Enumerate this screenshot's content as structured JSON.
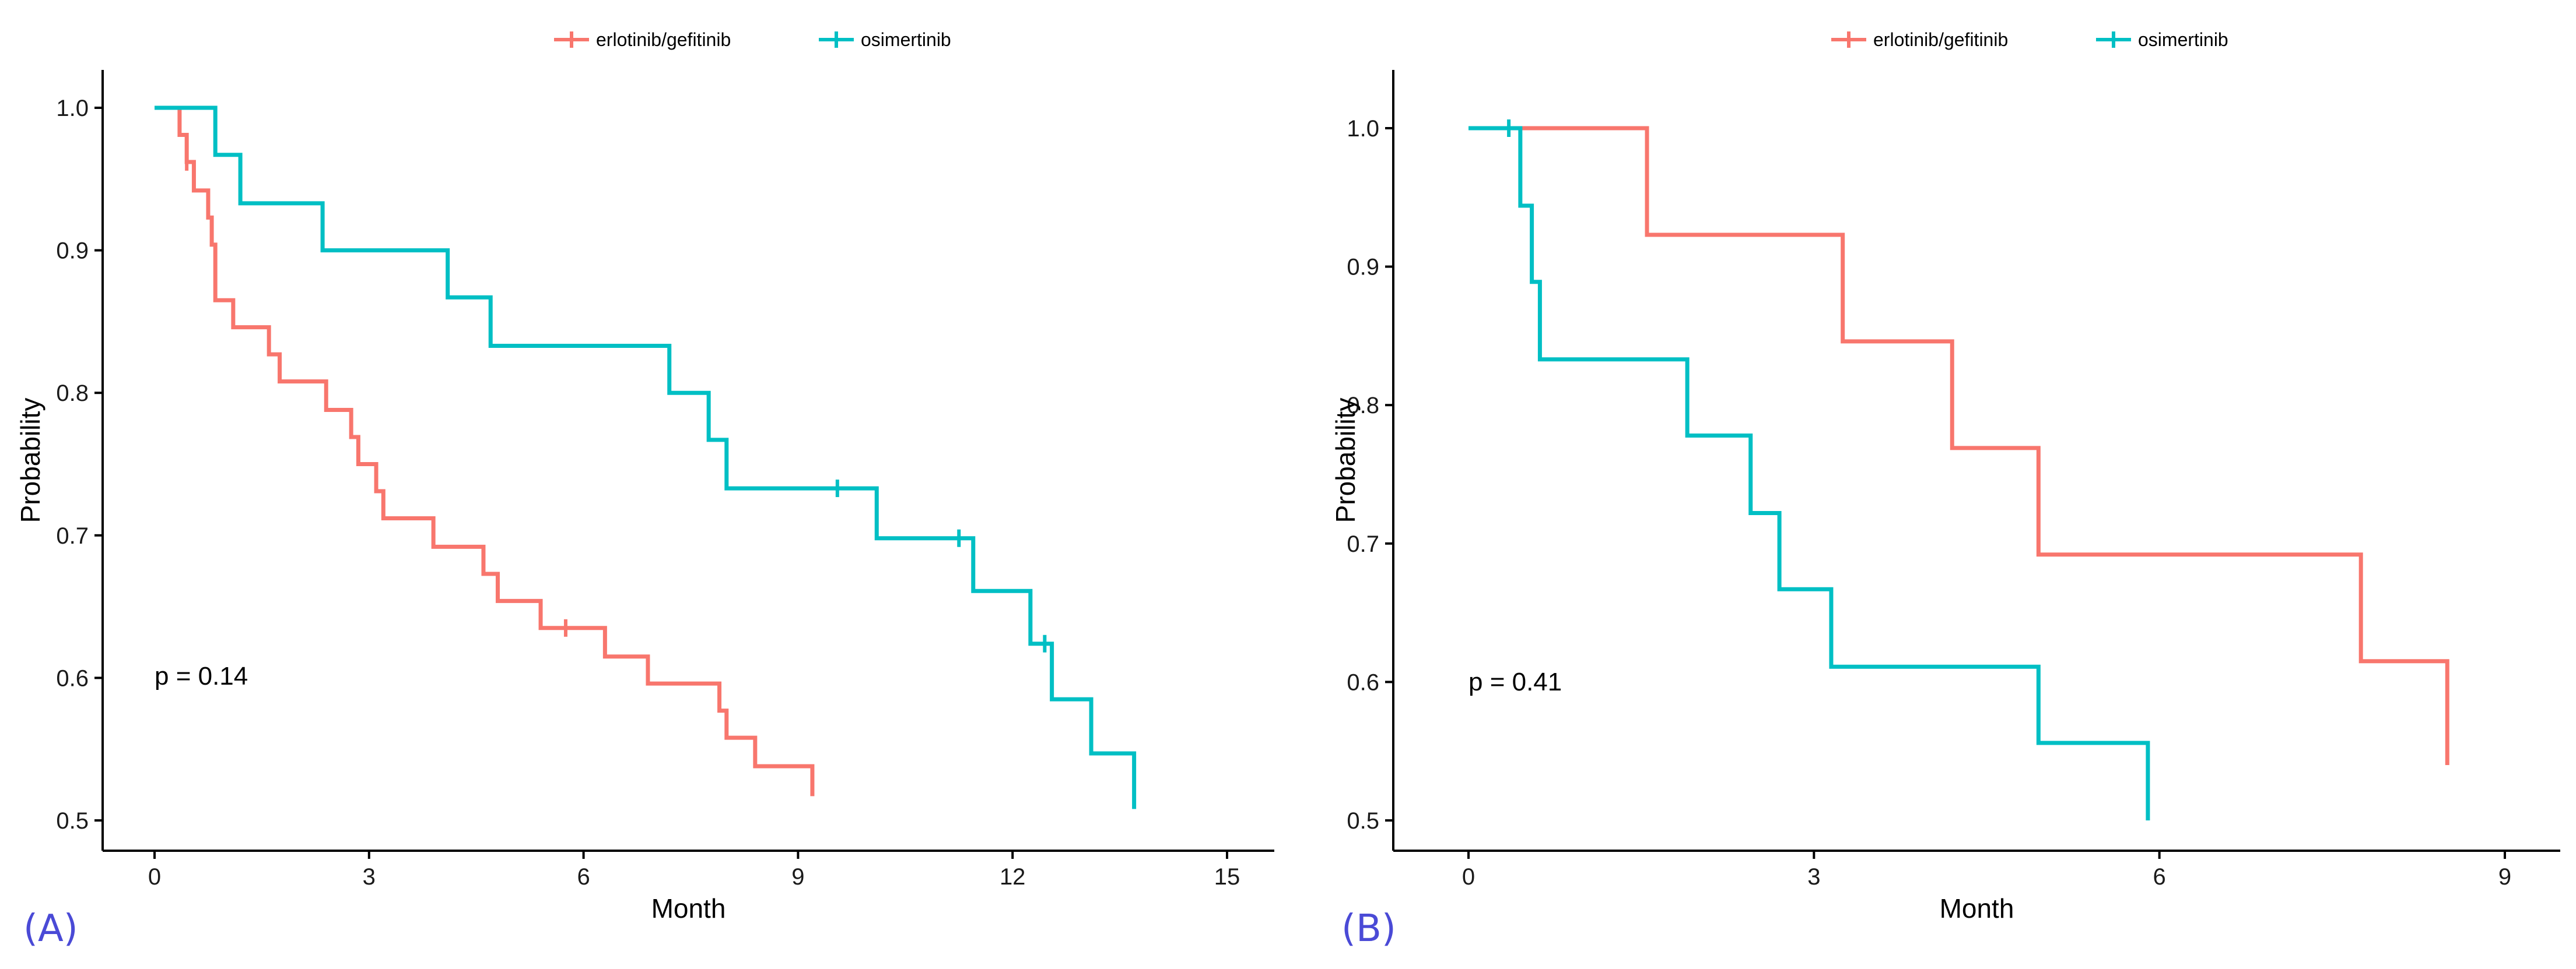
{
  "colors": {
    "erlotinib": "#F8766D",
    "osimertinib": "#00BFC4"
  },
  "chart_data": [
    {
      "type": "line",
      "subtype": "kaplan-meier-step",
      "panel_label": "(A)",
      "xlabel": "Month",
      "ylabel": "Probability",
      "xlim": [
        0,
        15
      ],
      "ylim": [
        0.5,
        1.0
      ],
      "xticks": [
        0,
        3,
        6,
        9,
        12,
        15
      ],
      "yticks": [
        0.5,
        0.6,
        0.7,
        0.8,
        0.9,
        1.0
      ],
      "xtick_labels": [
        "0",
        "3",
        "6",
        "9",
        "12",
        "15"
      ],
      "ytick_labels": [
        "0.5",
        "0.6",
        "0.7",
        "0.8",
        "0.9",
        "1.0"
      ],
      "legend_position": "top",
      "grid": false,
      "annotation": "p = 0.14",
      "series": [
        {
          "name": "erlotinib/gefitinib",
          "color": "#F8766D",
          "x": [
            0,
            0.35,
            0.45,
            0.55,
            0.75,
            0.8,
            0.85,
            0.9,
            1.1,
            1.6,
            1.75,
            2.4,
            2.75,
            2.85,
            2.95,
            3.1,
            3.2,
            3.9,
            4.6,
            4.8,
            5.4,
            6.3,
            6.9,
            7.9,
            8.0,
            8.4,
            9.2
          ],
          "y": [
            1.0,
            0.981,
            0.962,
            0.942,
            0.923,
            0.904,
            0.865,
            0.865,
            0.846,
            0.827,
            0.808,
            0.788,
            0.769,
            0.75,
            0.75,
            0.731,
            0.712,
            0.692,
            0.673,
            0.654,
            0.635,
            0.615,
            0.596,
            0.577,
            0.558,
            0.538,
            0.517
          ],
          "censor_x": [
            0.45,
            5.75
          ],
          "censor_y": [
            0.962,
            0.635
          ]
        },
        {
          "name": "osimertinib",
          "color": "#00BFC4",
          "x": [
            0,
            0.85,
            1.2,
            2.35,
            4.1,
            4.7,
            7.2,
            7.75,
            8.0,
            10.1,
            11.45,
            12.25,
            12.55,
            13.1,
            13.7
          ],
          "y": [
            1.0,
            0.967,
            0.933,
            0.9,
            0.867,
            0.833,
            0.8,
            0.767,
            0.733,
            0.698,
            0.661,
            0.624,
            0.585,
            0.547,
            0.508
          ],
          "censor_x": [
            9.55,
            11.25,
            12.45
          ],
          "censor_y": [
            0.733,
            0.698,
            0.624
          ]
        }
      ]
    },
    {
      "type": "line",
      "subtype": "kaplan-meier-step",
      "panel_label": "(B)",
      "xlabel": "Month",
      "ylabel": "Probability",
      "xlim": [
        0,
        9
      ],
      "ylim": [
        0.5,
        1.0
      ],
      "xticks": [
        0,
        3,
        6,
        9
      ],
      "yticks": [
        0.5,
        0.6,
        0.7,
        0.8,
        0.9,
        1.0
      ],
      "xtick_labels": [
        "0",
        "3",
        "6",
        "9"
      ],
      "ytick_labels": [
        "0.5",
        "0.6",
        "0.7",
        "0.8",
        "0.9",
        "1.0"
      ],
      "legend_position": "top",
      "grid": false,
      "annotation": "p = 0.41",
      "series": [
        {
          "name": "erlotinib/gefitinib",
          "color": "#F8766D",
          "x": [
            0,
            1.55,
            3.25,
            4.2,
            4.95,
            7.75,
            8.5
          ],
          "y": [
            1.0,
            0.923,
            0.846,
            0.769,
            0.692,
            0.615,
            0.54
          ],
          "censor_x": [],
          "censor_y": []
        },
        {
          "name": "osimertinib",
          "color": "#00BFC4",
          "x": [
            0,
            0.45,
            0.55,
            0.62,
            1.9,
            2.45,
            2.7,
            3.15,
            4.95,
            5.9
          ],
          "y": [
            1.0,
            0.944,
            0.889,
            0.833,
            0.778,
            0.722,
            0.667,
            0.611,
            0.556,
            0.5
          ],
          "censor_x": [
            0.35
          ],
          "censor_y": [
            1.0
          ]
        }
      ]
    }
  ]
}
